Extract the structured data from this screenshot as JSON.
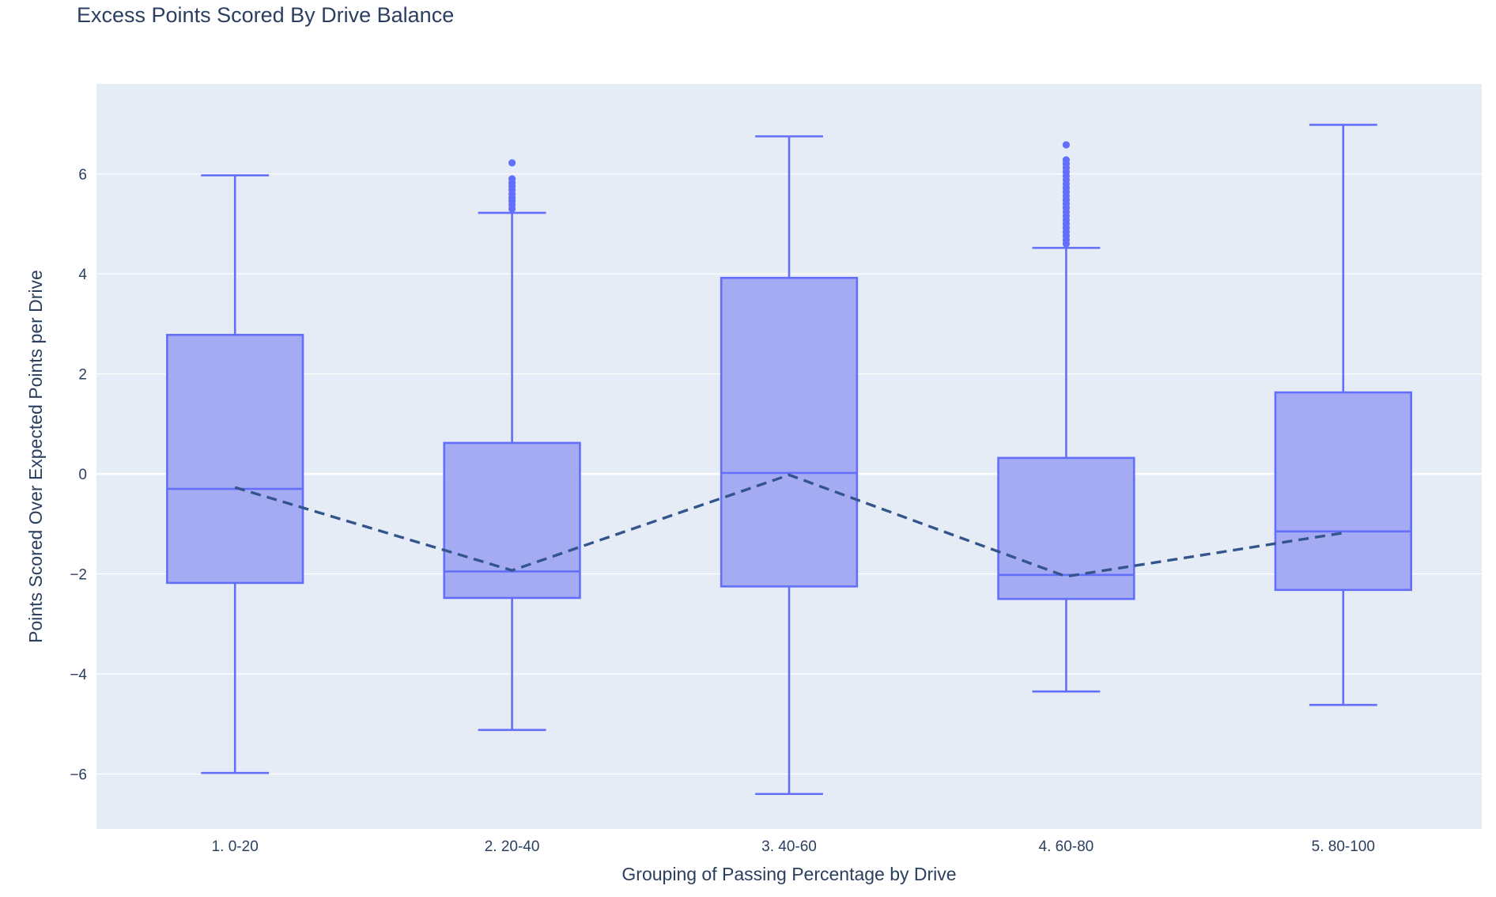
{
  "chart_data": {
    "type": "box",
    "title": "Excess Points Scored By Drive Balance",
    "xlabel": "Grouping of Passing Percentage by Drive",
    "ylabel": "Points Scored Over Expected Points per Drive",
    "ylim": [
      -7.1,
      7.8
    ],
    "yticks": [
      -6,
      -4,
      -2,
      0,
      2,
      4,
      6
    ],
    "ytick_labels": [
      "−6",
      "−4",
      "−2",
      "0",
      "2",
      "4",
      "6"
    ],
    "grid": true,
    "categories": [
      "1. 0-20",
      "2. 20-40",
      "3. 40-60",
      "4. 60-80",
      "5. 80-100"
    ],
    "boxes": [
      {
        "category": "1. 0-20",
        "lower_whisker": -5.98,
        "q1": -2.18,
        "median": -0.3,
        "q3": 2.78,
        "upper_whisker": 5.97,
        "outliers": []
      },
      {
        "category": "2. 20-40",
        "lower_whisker": -5.12,
        "q1": -2.48,
        "median": -1.95,
        "q3": 0.62,
        "upper_whisker": 5.22,
        "outliers": [
          5.3,
          5.38,
          5.45,
          5.52,
          5.6,
          5.68,
          5.75,
          5.82,
          5.9,
          6.22
        ]
      },
      {
        "category": "3. 40-60",
        "lower_whisker": -6.4,
        "q1": -2.25,
        "median": 0.02,
        "q3": 3.92,
        "upper_whisker": 6.75,
        "outliers": []
      },
      {
        "category": "4. 60-80",
        "lower_whisker": -4.35,
        "q1": -2.5,
        "median": -2.02,
        "q3": 0.32,
        "upper_whisker": 4.52,
        "outliers": [
          4.6,
          4.68,
          4.76,
          4.84,
          4.92,
          5.0,
          5.08,
          5.16,
          5.24,
          5.32,
          5.4,
          5.48,
          5.56,
          5.64,
          5.72,
          5.8,
          5.88,
          5.96,
          6.04,
          6.12,
          6.2,
          6.28,
          6.58
        ]
      },
      {
        "category": "5. 80-100",
        "lower_whisker": -4.62,
        "q1": -2.32,
        "median": -1.15,
        "q3": 1.63,
        "upper_whisker": 6.98,
        "outliers": []
      }
    ],
    "mean_line": {
      "style": "dashed",
      "values": [
        -0.27,
        -1.93,
        -0.02,
        -2.05,
        -1.18
      ]
    },
    "colors": {
      "box_fill": "#a4abf2",
      "box_stroke": "#636efa",
      "plot_bg": "#e5ecf6",
      "grid": "#ffffff",
      "mean_line": "#34558b",
      "text": "#2a3f5f"
    }
  }
}
